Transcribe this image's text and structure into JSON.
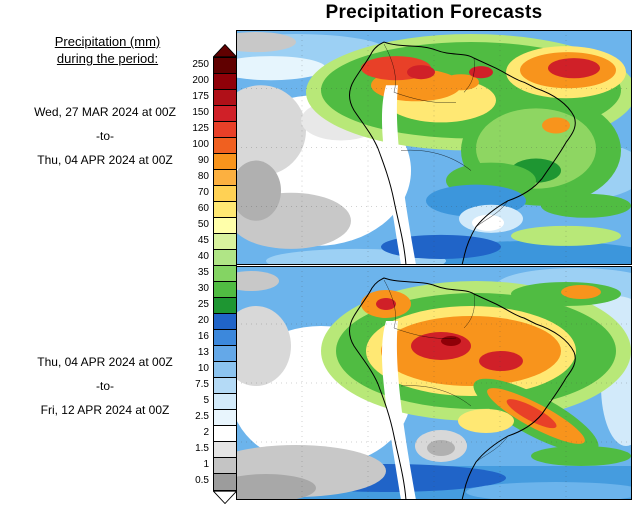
{
  "title": "Precipitation Forecasts",
  "legend": {
    "heading_line1": "Precipitation (mm)",
    "heading_line2": "during the period:",
    "arrow_up_color": "#600000",
    "arrow_down_color": "#ffffff",
    "entries": [
      {
        "value": "250",
        "color": "#600000"
      },
      {
        "value": "200",
        "color": "#8f0008"
      },
      {
        "value": "175",
        "color": "#b01018"
      },
      {
        "value": "150",
        "color": "#d02028"
      },
      {
        "value": "125",
        "color": "#e84028"
      },
      {
        "value": "100",
        "color": "#f06020"
      },
      {
        "value": "90",
        "color": "#f8941c"
      },
      {
        "value": "80",
        "color": "#fcb040"
      },
      {
        "value": "70",
        "color": "#ffd154"
      },
      {
        "value": "60",
        "color": "#ffe873"
      },
      {
        "value": "50",
        "color": "#ffffaa"
      },
      {
        "value": "45",
        "color": "#d8f29e"
      },
      {
        "value": "40",
        "color": "#b0e586"
      },
      {
        "value": "35",
        "color": "#84d463"
      },
      {
        "value": "30",
        "color": "#50bc42"
      },
      {
        "value": "25",
        "color": "#1e9632"
      },
      {
        "value": "20",
        "color": "#2064c8"
      },
      {
        "value": "16",
        "color": "#3c88dc"
      },
      {
        "value": "13",
        "color": "#64a8e8"
      },
      {
        "value": "10",
        "color": "#8cc4f0"
      },
      {
        "value": "7.5",
        "color": "#b4daf6"
      },
      {
        "value": "5",
        "color": "#d2eafa"
      },
      {
        "value": "2.5",
        "color": "#e8f5fd"
      },
      {
        "value": "2",
        "color": "#ffffff"
      },
      {
        "value": "1.5",
        "color": "#e4e4e4"
      },
      {
        "value": "1",
        "color": "#c4c4c4"
      },
      {
        "value": "0.5",
        "color": "#9c9c9c"
      }
    ]
  },
  "periods": {
    "first": {
      "start": "Wed, 27 MAR 2024 at 00Z",
      "separator": "-to-",
      "end": "Thu, 04 APR 2024 at 00Z"
    },
    "second": {
      "start": "Thu, 04 APR 2024 at 00Z",
      "separator": "-to-",
      "end": "Fri, 12 APR 2024 at 00Z"
    }
  }
}
